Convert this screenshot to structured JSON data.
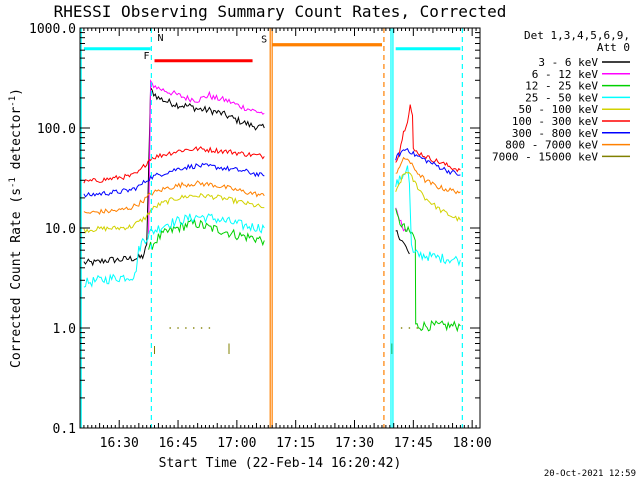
{
  "chart_data": {
    "type": "line",
    "title": "RHESSI Observing Summary Count Rates, Corrected",
    "xlabel": "Start Time (22-Feb-14 16:20:42)",
    "ylabel_main": "Corrected Count Rate (s",
    "ylabel_sup1": "-1",
    "ylabel_mid": " detector",
    "ylabel_sup2": "-1",
    "ylabel_end": ")",
    "x_range_minutes_after_1620": [
      0,
      102
    ],
    "ylim": [
      0.1,
      1000
    ],
    "yscale": "log",
    "x_ticks": [
      {
        "label": "16:30",
        "minute": 10
      },
      {
        "label": "16:45",
        "minute": 25
      },
      {
        "label": "17:00",
        "minute": 40
      },
      {
        "label": "17:15",
        "minute": 55
      },
      {
        "label": "17:30",
        "minute": 70
      },
      {
        "label": "17:45",
        "minute": 85
      },
      {
        "label": "18:00",
        "minute": 100
      }
    ],
    "y_ticks": [
      {
        "label": "0.1",
        "value": 0.1
      },
      {
        "label": "1.0",
        "value": 1
      },
      {
        "label": "10.0",
        "value": 10
      },
      {
        "label": "100.0",
        "value": 100
      },
      {
        "label": "1000.0",
        "value": 1000
      }
    ],
    "legend_position": "right",
    "legend_header": [
      "Det 1,3,4,5,6,9,",
      "Att 0"
    ],
    "footer": "20-Oct-2021 12:59",
    "series": [
      {
        "name": "3 - 6 keV",
        "color": "#000000",
        "noise": 0.035,
        "segments": [
          [
            [
              1,
              4.5
            ],
            [
              4,
              4.5
            ],
            [
              6,
              4.7
            ],
            [
              8,
              4.8
            ],
            [
              10,
              4.8
            ],
            [
              12,
              4.9
            ],
            [
              14,
              5.0
            ],
            [
              15,
              5.0
            ],
            [
              16,
              5.2
            ],
            [
              17,
              6.5
            ],
            [
              18,
              240
            ],
            [
              20,
              200
            ],
            [
              22,
              185
            ],
            [
              25,
              170
            ],
            [
              28,
              165
            ],
            [
              30,
              155
            ],
            [
              33,
              150
            ],
            [
              36,
              140
            ],
            [
              38,
              130
            ],
            [
              40,
              120
            ],
            [
              44,
              105
            ],
            [
              47,
              100
            ]
          ],
          [
            [
              80.5,
              9.2
            ],
            [
              81.5,
              8.3
            ],
            [
              82.5,
              7.0
            ],
            [
              83.5,
              6.0
            ],
            [
              84,
              5.5
            ]
          ]
        ]
      },
      {
        "name": "6 - 12 keV",
        "color": "#ff00ff",
        "noise": 0.03,
        "segments": [
          [
            [
              17.5,
              8.5
            ],
            [
              18,
              280
            ],
            [
              20,
              250
            ],
            [
              24,
              220
            ],
            [
              27,
              200
            ],
            [
              30,
              190
            ],
            [
              32,
              205
            ],
            [
              33,
              215
            ],
            [
              34,
              200
            ],
            [
              36,
              195
            ],
            [
              38,
              185
            ],
            [
              40,
              170
            ],
            [
              44,
              150
            ],
            [
              47,
              140
            ]
          ],
          [
            [
              80.5,
              15
            ],
            [
              81.5,
              12
            ],
            [
              82.5,
              10
            ],
            [
              83.5,
              9.5
            ]
          ]
        ]
      },
      {
        "name": "12 - 25 keV",
        "color": "#00d000",
        "noise": 0.05,
        "segments": [
          [
            [
              17.5,
              5.5
            ],
            [
              18,
              6.5
            ],
            [
              20,
              8
            ],
            [
              22,
              9
            ],
            [
              25,
              10
            ],
            [
              28,
              11
            ],
            [
              30,
              11
            ],
            [
              33,
              10
            ],
            [
              36,
              9.5
            ],
            [
              40,
              8.5
            ],
            [
              44,
              8
            ],
            [
              47,
              7.5
            ]
          ],
          [
            [
              80.5,
              14
            ],
            [
              81.2,
              12
            ],
            [
              82,
              11
            ],
            [
              83,
              9.5
            ],
            [
              84,
              9
            ],
            [
              85,
              8.5
            ],
            [
              85.5,
              7.5
            ],
            [
              85.6,
              1.05
            ],
            [
              87,
              1.05
            ],
            [
              90,
              1.05
            ],
            [
              97,
              1.05
            ]
          ]
        ]
      },
      {
        "name": "25 - 50 keV",
        "color": "#00ffff",
        "noise": 0.05,
        "segments": [
          [
            [
              1,
              2.8
            ],
            [
              5,
              3
            ],
            [
              10,
              3.2
            ],
            [
              13,
              3.3
            ],
            [
              14,
              3.3
            ],
            [
              15,
              6
            ],
            [
              16,
              7.5
            ],
            [
              17,
              8
            ],
            [
              18,
              9
            ],
            [
              22,
              11
            ],
            [
              26,
              12
            ],
            [
              30,
              13
            ],
            [
              34,
              12.5
            ],
            [
              38,
              11.5
            ],
            [
              42,
              10.5
            ],
            [
              47,
              10
            ]
          ],
          [
            [
              80.5,
              27
            ],
            [
              81.5,
              30
            ],
            [
              82.5,
              35
            ],
            [
              83.5,
              40
            ],
            [
              84,
              28
            ],
            [
              84.5,
              6.5
            ],
            [
              85,
              5.5
            ],
            [
              88,
              5.3
            ],
            [
              92,
              5.0
            ],
            [
              97,
              4.8
            ]
          ]
        ]
      },
      {
        "name": "50 - 100 keV",
        "color": "#d2d200",
        "noise": 0.025,
        "segments": [
          [
            [
              1,
              9.5
            ],
            [
              5,
              9.8
            ],
            [
              10,
              10
            ],
            [
              13,
              10.3
            ],
            [
              15,
              11.5
            ],
            [
              17,
              13
            ],
            [
              18,
              15
            ],
            [
              20,
              17
            ],
            [
              24,
              19.5
            ],
            [
              28,
              21
            ],
            [
              32,
              21
            ],
            [
              36,
              20
            ],
            [
              40,
              18.5
            ],
            [
              44,
              17
            ],
            [
              47,
              16
            ]
          ],
          [
            [
              80.5,
              22
            ],
            [
              81.5,
              28
            ],
            [
              82.5,
              34
            ],
            [
              83.5,
              37
            ],
            [
              85,
              30
            ],
            [
              88,
              20
            ],
            [
              92,
              15
            ],
            [
              95,
              13
            ],
            [
              97,
              12
            ]
          ]
        ]
      },
      {
        "name": "100 - 300 keV",
        "color": "#ff0000",
        "noise": 0.025,
        "segments": [
          [
            [
              1,
              29
            ],
            [
              5,
              30
            ],
            [
              10,
              32
            ],
            [
              13,
              33
            ],
            [
              15,
              36
            ],
            [
              17,
              45
            ],
            [
              18,
              50
            ],
            [
              22,
              55
            ],
            [
              26,
              60
            ],
            [
              30,
              62
            ],
            [
              34,
              60
            ],
            [
              38,
              58
            ],
            [
              42,
              55
            ],
            [
              47,
              52
            ]
          ],
          [
            [
              80.5,
              45
            ],
            [
              81.5,
              60
            ],
            [
              82.5,
              90
            ],
            [
              83.5,
              120
            ],
            [
              84.2,
              170
            ],
            [
              84.8,
              130
            ],
            [
              85,
              60
            ],
            [
              87,
              55
            ],
            [
              89,
              50
            ],
            [
              92,
              45
            ],
            [
              95,
              40
            ],
            [
              97,
              38
            ]
          ]
        ]
      },
      {
        "name": "300 - 800 keV",
        "color": "#0000ff",
        "noise": 0.025,
        "segments": [
          [
            [
              1,
              21
            ],
            [
              5,
              22
            ],
            [
              10,
              23
            ],
            [
              13,
              24
            ],
            [
              15,
              26
            ],
            [
              17,
              30
            ],
            [
              18,
              32
            ],
            [
              22,
              36
            ],
            [
              26,
              40
            ],
            [
              30,
              42
            ],
            [
              34,
              41
            ],
            [
              38,
              39
            ],
            [
              42,
              37
            ],
            [
              47,
              33
            ]
          ],
          [
            [
              80.5,
              50
            ],
            [
              81.5,
              55
            ],
            [
              82.5,
              60
            ],
            [
              83.5,
              62
            ],
            [
              85,
              55
            ],
            [
              88,
              48
            ],
            [
              91,
              42
            ],
            [
              94,
              37
            ],
            [
              97,
              34
            ]
          ]
        ]
      },
      {
        "name": "800 - 7000 keV",
        "color": "#ff8000",
        "noise": 0.025,
        "segments": [
          [
            [
              1,
              14
            ],
            [
              5,
              14.5
            ],
            [
              10,
              15
            ],
            [
              13,
              16
            ],
            [
              15,
              17.5
            ],
            [
              17,
              20
            ],
            [
              18,
              22
            ],
            [
              22,
              25
            ],
            [
              26,
              27
            ],
            [
              30,
              28
            ],
            [
              34,
              27
            ],
            [
              38,
              25
            ],
            [
              42,
              23
            ],
            [
              47,
              21
            ]
          ],
          [
            [
              80.5,
              35
            ],
            [
              81.5,
              42
            ],
            [
              82.5,
              48
            ],
            [
              83.5,
              50
            ],
            [
              85,
              40
            ],
            [
              88,
              30
            ],
            [
              91,
              26
            ],
            [
              94,
              24
            ],
            [
              97,
              23
            ]
          ]
        ]
      },
      {
        "name": "7000 - 15000 keV",
        "color": "#808000",
        "noise": 0.0,
        "segments": [
          [
            [
              19,
              0.66
            ],
            [
              19,
              0.55
            ]
          ],
          [
            [
              38,
              0.7
            ],
            [
              38,
              0.55
            ]
          ],
          [
            [
              79.5,
              0.7
            ],
            [
              79.5,
              0.55
            ]
          ]
        ],
        "dots": [
          [
            23,
            1.0
          ],
          [
            25,
            1.0
          ],
          [
            27,
            1.0
          ],
          [
            29,
            1.0
          ],
          [
            31,
            1.0
          ],
          [
            33,
            1.0
          ],
          [
            82,
            1.0
          ],
          [
            84,
            1.0
          ],
          [
            86,
            1.0
          ]
        ]
      }
    ],
    "annotations": [
      {
        "label": "N",
        "color": "#00ffff",
        "bar_minutes": [
          18.5,
          18.5
        ],
        "bar_value": 620
      },
      {
        "label": "F",
        "color": "#ff0000",
        "bar_minutes": [
          19,
          44
        ],
        "bar_value": 470
      },
      {
        "label": "S",
        "color": "#ff8000",
        "bar_minutes": [
          49,
          77
        ],
        "bar_value": 680
      }
    ],
    "saa_bars": [
      {
        "minutes": [
          1,
          18
        ],
        "value": 620,
        "color": "#00ffff"
      },
      {
        "minutes": [
          80.5,
          97
        ],
        "value": 620,
        "color": "#00ffff"
      }
    ],
    "orange_level_lines": [
      {
        "minutes": [
          49,
          77
        ],
        "value": 680
      }
    ],
    "vertical_markers": [
      {
        "minute": 18.2,
        "color": "#00ffff",
        "style": "dashed"
      },
      {
        "minute": 48.5,
        "color": "#ff8000",
        "style": "solid"
      },
      {
        "minute": 49,
        "color": "#ff8000",
        "style": "solid"
      },
      {
        "minute": 77.5,
        "color": "#ff8000",
        "style": "dashed"
      },
      {
        "minute": 79.3,
        "color": "#00ffff",
        "style": "solid"
      },
      {
        "minute": 79.8,
        "color": "#00ffff",
        "style": "solid"
      },
      {
        "minute": 97.5,
        "color": "#00ffff",
        "style": "dashed"
      },
      {
        "minute": 0.3,
        "color": "#00ffff",
        "style": "solid"
      }
    ]
  }
}
